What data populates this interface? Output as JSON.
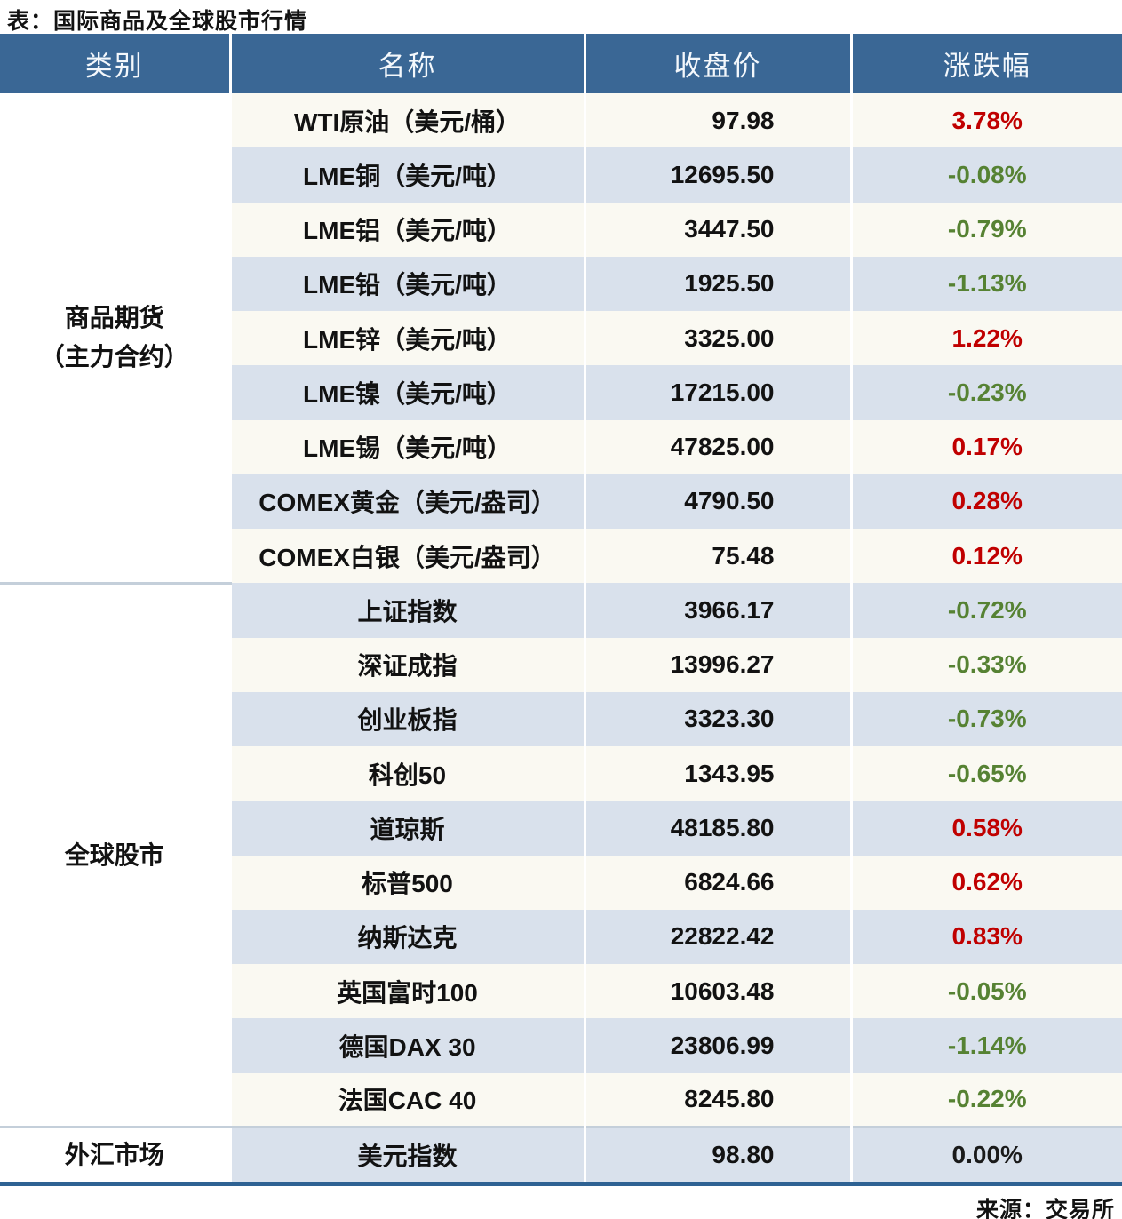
{
  "title": "表：国际商品及全球股市行情",
  "source": "来源：交易所",
  "columns": [
    "类别",
    "名称",
    "收盘价",
    "涨跌幅"
  ],
  "theme": {
    "header_bg": "#3A6795",
    "header_text": "#F4F8FC",
    "row_bg": "#FAF9F2",
    "row_alt_bg": "#D9E1EC",
    "category_bg": "#FFFFFF",
    "up_color": "#C00000",
    "down_color": "#568233",
    "flat_color": "#1A1A1A",
    "divider_color": "#C4CFDA",
    "bottom_rule_color": "#2E6293",
    "text_color": "#121212"
  },
  "sections": [
    {
      "category": "商品期货",
      "category_line2": "（主力合约）",
      "rows": [
        {
          "name": "WTI原油（美元/桶）",
          "close": "97.98",
          "change": "3.78%",
          "trend": "up"
        },
        {
          "name": "LME铜（美元/吨）",
          "close": "12695.50",
          "change": "-0.08%",
          "trend": "down"
        },
        {
          "name": "LME铝（美元/吨）",
          "close": "3447.50",
          "change": "-0.79%",
          "trend": "down"
        },
        {
          "name": "LME铅（美元/吨）",
          "close": "1925.50",
          "change": "-1.13%",
          "trend": "down"
        },
        {
          "name": "LME锌（美元/吨）",
          "close": "3325.00",
          "change": "1.22%",
          "trend": "up"
        },
        {
          "name": "LME镍（美元/吨）",
          "close": "17215.00",
          "change": "-0.23%",
          "trend": "down"
        },
        {
          "name": "LME锡（美元/吨）",
          "close": "47825.00",
          "change": "0.17%",
          "trend": "up"
        },
        {
          "name": "COMEX黄金（美元/盎司）",
          "close": "4790.50",
          "change": "0.28%",
          "trend": "up"
        },
        {
          "name": "COMEX白银（美元/盎司）",
          "close": "75.48",
          "change": "0.12%",
          "trend": "up"
        }
      ]
    },
    {
      "category": "全球股市",
      "rows": [
        {
          "name": "上证指数",
          "close": "3966.17",
          "change": "-0.72%",
          "trend": "down"
        },
        {
          "name": "深证成指",
          "close": "13996.27",
          "change": "-0.33%",
          "trend": "down"
        },
        {
          "name": "创业板指",
          "close": "3323.30",
          "change": "-0.73%",
          "trend": "down"
        },
        {
          "name": "科创50",
          "close": "1343.95",
          "change": "-0.65%",
          "trend": "down"
        },
        {
          "name": "道琼斯",
          "close": "48185.80",
          "change": "0.58%",
          "trend": "up"
        },
        {
          "name": "标普500",
          "close": "6824.66",
          "change": "0.62%",
          "trend": "up"
        },
        {
          "name": "纳斯达克",
          "close": "22822.42",
          "change": "0.83%",
          "trend": "up"
        },
        {
          "name": "英国富时100",
          "close": "10603.48",
          "change": "-0.05%",
          "trend": "down"
        },
        {
          "name": "德国DAX 30",
          "close": "23806.99",
          "change": "-1.14%",
          "trend": "down"
        },
        {
          "name": "法国CAC 40",
          "close": "8245.80",
          "change": "-0.22%",
          "trend": "down"
        }
      ]
    },
    {
      "category": "外汇市场",
      "rows": [
        {
          "name": "美元指数",
          "close": "98.80",
          "change": "0.00%",
          "trend": "flat"
        }
      ]
    }
  ],
  "chart_data": {
    "type": "table",
    "title": "表：国际商品及全球股市行情",
    "columns": [
      "类别",
      "名称",
      "收盘价",
      "涨跌幅"
    ],
    "rows": [
      [
        "商品期货（主力合约）",
        "WTI原油（美元/桶）",
        97.98,
        "3.78%"
      ],
      [
        "商品期货（主力合约）",
        "LME铜（美元/吨）",
        12695.5,
        "-0.08%"
      ],
      [
        "商品期货（主力合约）",
        "LME铝（美元/吨）",
        3447.5,
        "-0.79%"
      ],
      [
        "商品期货（主力合约）",
        "LME铅（美元/吨）",
        1925.5,
        "-1.13%"
      ],
      [
        "商品期货（主力合约）",
        "LME锌（美元/吨）",
        3325.0,
        "1.22%"
      ],
      [
        "商品期货（主力合约）",
        "LME镍（美元/吨）",
        17215.0,
        "-0.23%"
      ],
      [
        "商品期货（主力合约）",
        "LME锡（美元/吨）",
        47825.0,
        "0.17%"
      ],
      [
        "商品期货（主力合约）",
        "COMEX黄金（美元/盎司）",
        4790.5,
        "0.28%"
      ],
      [
        "商品期货（主力合约）",
        "COMEX白银（美元/盎司）",
        75.48,
        "0.12%"
      ],
      [
        "全球股市",
        "上证指数",
        3966.17,
        "-0.72%"
      ],
      [
        "全球股市",
        "深证成指",
        13996.27,
        "-0.33%"
      ],
      [
        "全球股市",
        "创业板指",
        3323.3,
        "-0.73%"
      ],
      [
        "全球股市",
        "科创50",
        1343.95,
        "-0.65%"
      ],
      [
        "全球股市",
        "道琼斯",
        48185.8,
        "0.58%"
      ],
      [
        "全球股市",
        "标普500",
        6824.66,
        "0.62%"
      ],
      [
        "全球股市",
        "纳斯达克",
        22822.42,
        "0.83%"
      ],
      [
        "全球股市",
        "英国富时100",
        10603.48,
        "-0.05%"
      ],
      [
        "全球股市",
        "德国DAX 30",
        23806.99,
        "-1.14%"
      ],
      [
        "全球股市",
        "法国CAC 40",
        8245.8,
        "-0.22%"
      ],
      [
        "外汇市场",
        "美元指数",
        98.8,
        "0.00%"
      ]
    ],
    "source": "来源：交易所",
    "up_means": "red",
    "down_means": "green"
  }
}
